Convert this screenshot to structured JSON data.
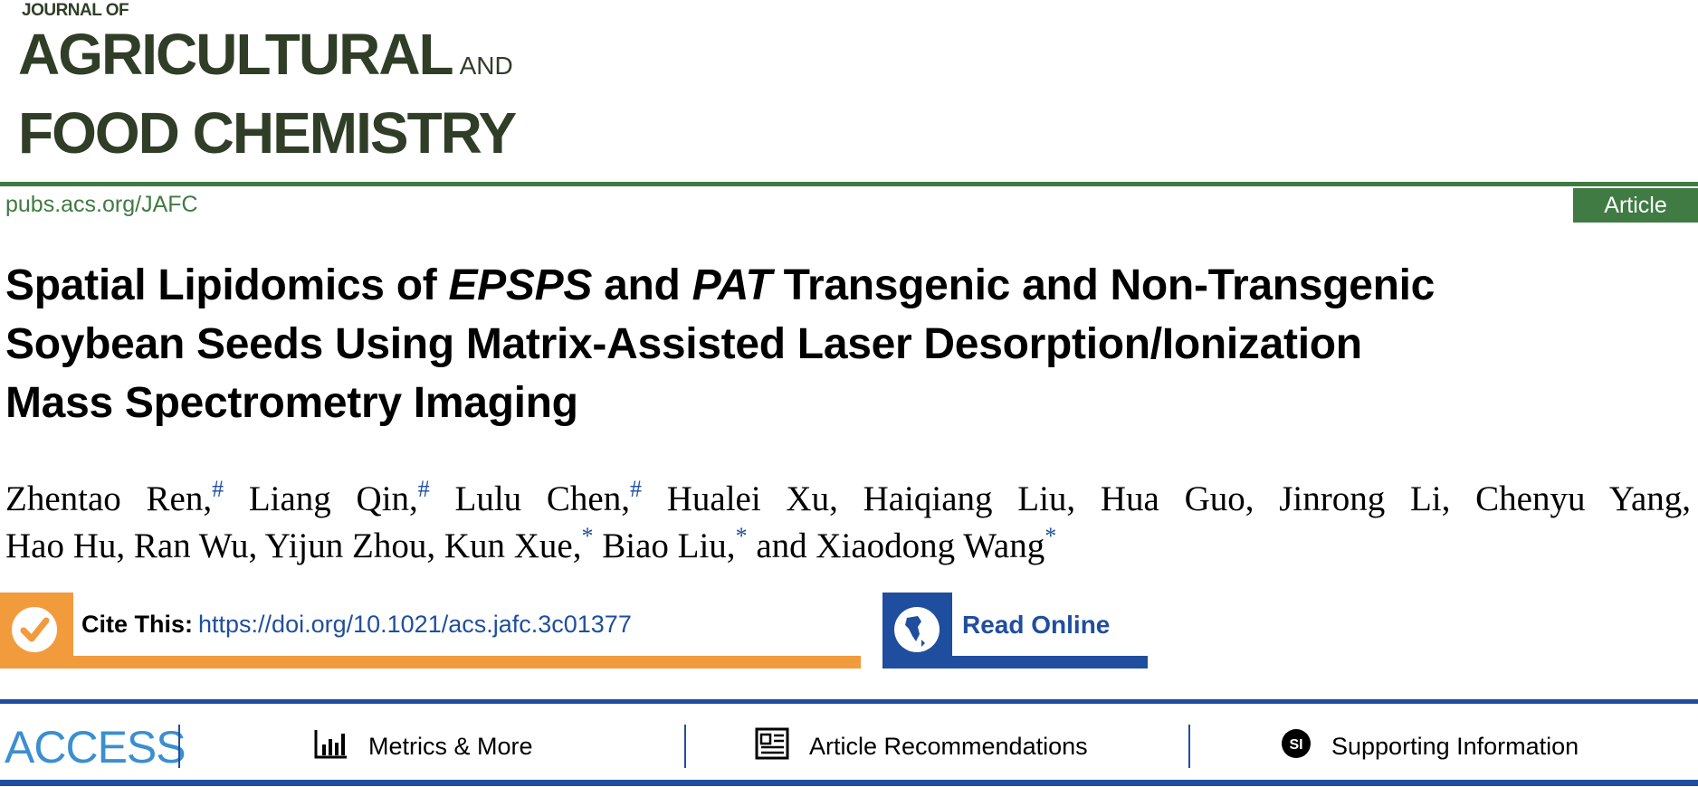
{
  "journal": {
    "logo_line1": "JOURNAL OF",
    "logo_line2": "AGRICULTURAL",
    "logo_and": "AND",
    "logo_line3": "FOOD CHEMISTRY",
    "url": "pubs.acs.org/JAFC",
    "article_type": "Article"
  },
  "article": {
    "title_line1_a": "Spatial Lipidomics of ",
    "title_line1_b": "EPSPS",
    "title_line1_c": " and ",
    "title_line1_d": "PAT",
    "title_line1_e": " Transgenic and Non-Transgenic",
    "title_line2": "Soybean Seeds Using Matrix-Assisted Laser Desorption/Ionization",
    "title_line3": "Mass Spectrometry Imaging",
    "authors": [
      {
        "name": "Zhentao Ren,",
        "mark": "#"
      },
      {
        "name": "Liang Qin,",
        "mark": "#"
      },
      {
        "name": "Lulu Chen,",
        "mark": "#"
      },
      {
        "name": "Hualei Xu,",
        "mark": ""
      },
      {
        "name": "Haiqiang Liu,",
        "mark": ""
      },
      {
        "name": "Hua Guo,",
        "mark": ""
      },
      {
        "name": "Jinrong Li,",
        "mark": ""
      },
      {
        "name": "Chenyu Yang,",
        "mark": ""
      },
      {
        "name": "Hao Hu,",
        "mark": ""
      },
      {
        "name": "Ran Wu,",
        "mark": ""
      },
      {
        "name": "Yijun Zhou,",
        "mark": ""
      },
      {
        "name": "Kun Xue,",
        "mark": "*"
      },
      {
        "name": "Biao Liu,",
        "mark": "*"
      },
      {
        "name": "and Xiaodong Wang",
        "mark": "*"
      }
    ]
  },
  "cite": {
    "label": "Cite This:",
    "doi": "https://doi.org/10.1021/acs.jafc.3c01377",
    "icon": "checkmark-icon"
  },
  "read_online": {
    "label": "Read Online",
    "icon": "globe-icon"
  },
  "access_bar": {
    "access_label": "ACCESS",
    "items": [
      {
        "label": "Metrics & More",
        "icon": "bar-chart-icon"
      },
      {
        "label": "Article Recommendations",
        "icon": "newspaper-icon"
      },
      {
        "label": "Supporting Information",
        "icon": "si-icon"
      }
    ]
  },
  "colors": {
    "journal_green": "#3f7b42",
    "logo_dark": "#303d27",
    "cite_orange": "#f29b3c",
    "acs_blue": "#1f4e9e",
    "access_blue": "#3b8fd0"
  }
}
